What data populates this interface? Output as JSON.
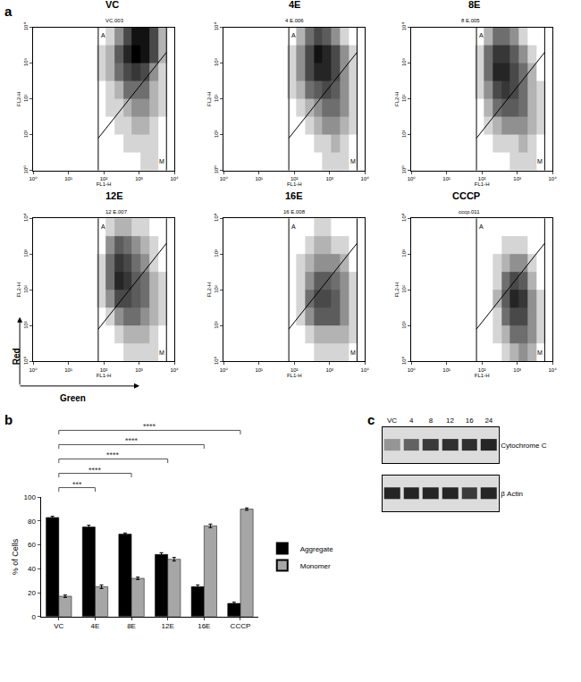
{
  "chart_data": [
    {
      "type": "heatmap",
      "panel": "a",
      "log": true,
      "grid": false,
      "x_label": "FL1-H",
      "y_label": "FL2-H",
      "xlim": [
        1,
        10000
      ],
      "ylim": [
        1,
        10000
      ],
      "xticks": [
        {
          "value": 1,
          "label": "10⁰"
        },
        {
          "value": 10,
          "label": "10¹"
        },
        {
          "value": 100,
          "label": "10²"
        },
        {
          "value": 1000,
          "label": "10³"
        },
        {
          "value": 10000,
          "label": "10⁴"
        }
      ],
      "yticks": [
        {
          "value": 1,
          "label": "10⁰"
        },
        {
          "value": 10,
          "label": "10¹"
        },
        {
          "value": 100,
          "label": "10²"
        },
        {
          "value": 1000,
          "label": "10³"
        },
        {
          "value": 10000,
          "label": "10⁴"
        }
      ],
      "arrow_labels": {
        "x": "Green",
        "y": "Red"
      },
      "gate": {
        "left": 70,
        "right": 6000,
        "diagonal": {
          "x": [
            70,
            6000
          ],
          "y": [
            8,
            2000
          ]
        },
        "labels": [
          {
            "text": "A",
            "x": 95,
            "y": 6000
          },
          {
            "text": "M",
            "x": 4500,
            "y": 1.8
          }
        ]
      },
      "x_bins": [
        63.1,
        112.2,
        199.5,
        354.8,
        631,
        1122,
        1995,
        3548,
        6310
      ],
      "y_bins": [
        1,
        3.16,
        10,
        31.6,
        100,
        316,
        1000,
        3162,
        10000
      ],
      "density_lim": [
        0,
        10
      ],
      "plots": [
        {
          "title": "VC",
          "subtitle": "VC.003",
          "density": [
            [
              0,
              0,
              0,
              0,
              0,
              1,
              1,
              0
            ],
            [
              0,
              0,
              0,
              1,
              1,
              1,
              1,
              0
            ],
            [
              0,
              0,
              1,
              1,
              2,
              2,
              1,
              0
            ],
            [
              0,
              1,
              1,
              2,
              3,
              3,
              2,
              1
            ],
            [
              0,
              1,
              2,
              4,
              4,
              4,
              2,
              1
            ],
            [
              1,
              2,
              4,
              6,
              7,
              6,
              3,
              1
            ],
            [
              1,
              2,
              5,
              8,
              10,
              9,
              6,
              2
            ],
            [
              0,
              1,
              3,
              6,
              9,
              9,
              6,
              2
            ]
          ]
        },
        {
          "title": "4E",
          "subtitle": "4 E.006",
          "density": [
            [
              0,
              0,
              0,
              0,
              1,
              1,
              1,
              0
            ],
            [
              0,
              0,
              0,
              1,
              1,
              2,
              1,
              0
            ],
            [
              0,
              0,
              1,
              2,
              3,
              3,
              2,
              1
            ],
            [
              0,
              1,
              2,
              3,
              4,
              4,
              3,
              1
            ],
            [
              1,
              2,
              4,
              5,
              6,
              5,
              3,
              1
            ],
            [
              1,
              3,
              6,
              8,
              8,
              6,
              3,
              1
            ],
            [
              1,
              3,
              6,
              9,
              8,
              6,
              3,
              1
            ],
            [
              0,
              2,
              4,
              6,
              5,
              3,
              1,
              0
            ]
          ]
        },
        {
          "title": "8E",
          "subtitle": "8 E.005",
          "density": [
            [
              0,
              0,
              0,
              0,
              1,
              1,
              1,
              0
            ],
            [
              0,
              0,
              1,
              1,
              1,
              2,
              1,
              0
            ],
            [
              0,
              1,
              2,
              3,
              3,
              3,
              2,
              1
            ],
            [
              0,
              2,
              4,
              5,
              5,
              4,
              2,
              1
            ],
            [
              1,
              3,
              6,
              7,
              6,
              4,
              2,
              1
            ],
            [
              1,
              4,
              8,
              8,
              6,
              4,
              2,
              0
            ],
            [
              1,
              4,
              7,
              7,
              5,
              3,
              1,
              0
            ],
            [
              0,
              2,
              4,
              4,
              3,
              1,
              0,
              0
            ]
          ]
        },
        {
          "title": "12E",
          "subtitle": "12 E.007",
          "density": [
            [
              0,
              0,
              0,
              1,
              1,
              1,
              1,
              0
            ],
            [
              0,
              0,
              1,
              2,
              2,
              2,
              1,
              0
            ],
            [
              0,
              1,
              3,
              4,
              4,
              3,
              2,
              1
            ],
            [
              1,
              3,
              6,
              6,
              5,
              4,
              2,
              1
            ],
            [
              1,
              4,
              8,
              7,
              5,
              4,
              2,
              1
            ],
            [
              1,
              4,
              7,
              6,
              4,
              3,
              1,
              0
            ],
            [
              0,
              3,
              5,
              4,
              3,
              2,
              1,
              0
            ],
            [
              0,
              1,
              2,
              2,
              1,
              1,
              0,
              0
            ]
          ]
        },
        {
          "title": "16E",
          "subtitle": "16 E.008",
          "density": [
            [
              0,
              0,
              0,
              1,
              1,
              1,
              1,
              0
            ],
            [
              0,
              0,
              1,
              2,
              2,
              2,
              2,
              1
            ],
            [
              0,
              1,
              3,
              5,
              5,
              5,
              3,
              1
            ],
            [
              0,
              1,
              4,
              6,
              6,
              5,
              3,
              1
            ],
            [
              0,
              1,
              3,
              5,
              5,
              4,
              3,
              1
            ],
            [
              0,
              1,
              2,
              3,
              3,
              3,
              2,
              0
            ],
            [
              0,
              0,
              1,
              2,
              2,
              1,
              1,
              0
            ],
            [
              0,
              0,
              0,
              1,
              1,
              0,
              0,
              0
            ]
          ]
        },
        {
          "title": "CCCP",
          "subtitle": "cccp.011",
          "density": [
            [
              0,
              0,
              0,
              1,
              2,
              3,
              2,
              0
            ],
            [
              0,
              0,
              1,
              2,
              4,
              4,
              3,
              1
            ],
            [
              0,
              0,
              1,
              4,
              6,
              6,
              3,
              1
            ],
            [
              0,
              0,
              2,
              5,
              8,
              7,
              3,
              1
            ],
            [
              0,
              0,
              1,
              4,
              6,
              5,
              2,
              0
            ],
            [
              0,
              0,
              1,
              2,
              3,
              3,
              1,
              0
            ],
            [
              0,
              0,
              0,
              1,
              1,
              1,
              0,
              0
            ],
            [
              0,
              0,
              0,
              0,
              0,
              0,
              0,
              0
            ]
          ]
        }
      ]
    },
    {
      "type": "bar",
      "panel": "b",
      "grid": false,
      "legend": "right",
      "categories": [
        "VC",
        "4E",
        "8E",
        "12E",
        "16E",
        "CCCP"
      ],
      "ylabel": "% of Cells",
      "ylim": [
        0,
        100
      ],
      "yticks": [
        0,
        20,
        40,
        60,
        80,
        100
      ],
      "series": [
        {
          "name": "Aggregate",
          "color": "#000000",
          "values": [
            83,
            75,
            69,
            52,
            25,
            11
          ],
          "errors": [
            1,
            1.5,
            1,
            1.5,
            1.5,
            1
          ]
        },
        {
          "name": "Monomer",
          "color": "#a6a6a6",
          "values": [
            17,
            25,
            32,
            48,
            76,
            90
          ],
          "errors": [
            1,
            1.5,
            1,
            1.5,
            1.5,
            1
          ]
        }
      ],
      "comparisons": [
        {
          "from": "VC",
          "to": "4E",
          "label": "***"
        },
        {
          "from": "VC",
          "to": "8E",
          "label": "****"
        },
        {
          "from": "VC",
          "to": "12E",
          "label": "****"
        },
        {
          "from": "VC",
          "to": "16E",
          "label": "****"
        },
        {
          "from": "VC",
          "to": "CCCP",
          "label": "****"
        }
      ]
    },
    {
      "type": "blot",
      "panel": "c",
      "lanes": [
        "VC",
        "4",
        "8",
        "12",
        "16",
        "24"
      ],
      "intensity_lim": [
        0,
        1
      ],
      "rows": [
        {
          "name": "Cytochrome C",
          "values": [
            0.35,
            0.6,
            0.8,
            0.85,
            0.85,
            0.9
          ]
        },
        {
          "name": "β Actin",
          "values": [
            0.9,
            0.9,
            0.9,
            0.9,
            0.8,
            0.9
          ]
        }
      ]
    }
  ]
}
